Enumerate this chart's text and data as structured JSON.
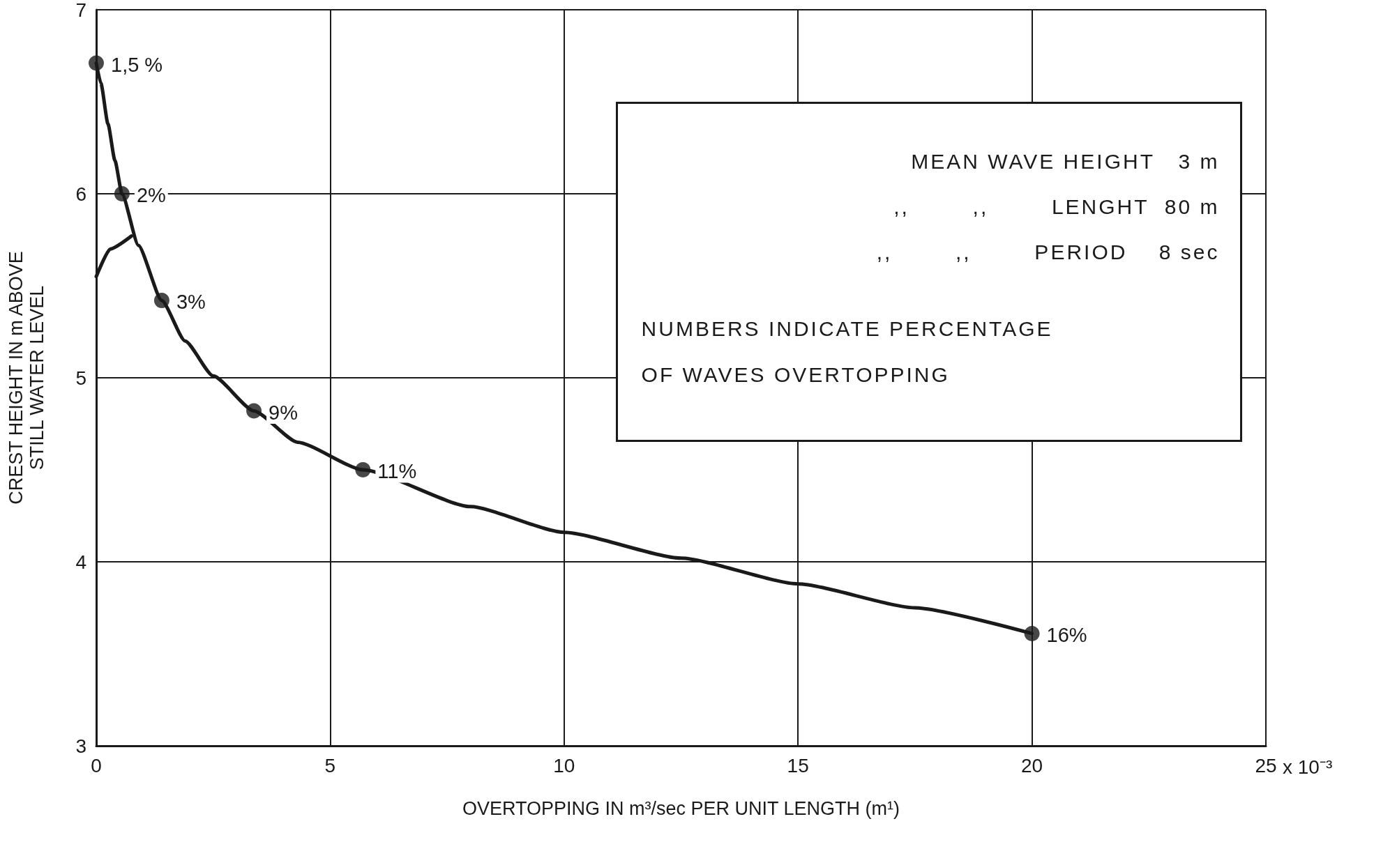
{
  "chart_data": {
    "type": "line",
    "xlabel": "OVERTOPPING IN m³/sec PER UNIT LENGTH (m¹)",
    "ylabel": "CREST HEIGHT IN m ABOVE\nSTILL WATER LEVEL",
    "xlim": [
      0,
      25
    ],
    "xticks": [
      0,
      5,
      10,
      15,
      20,
      25
    ],
    "ylim": [
      3,
      7
    ],
    "yticks": [
      3,
      4,
      5,
      6,
      7
    ],
    "grid": true,
    "series": [
      {
        "color": "#1a1a1a",
        "marker": "none",
        "x": [
          0,
          0.1,
          0.25,
          0.4,
          0.55,
          0.9,
          1.4,
          1.9,
          2.5,
          3.37,
          4.3,
          5.7,
          8,
          10,
          12.5,
          15,
          17.5,
          20
        ],
        "values": [
          6.71,
          6.6,
          6.38,
          6.18,
          6.0,
          5.72,
          5.42,
          5.2,
          5.01,
          4.82,
          4.65,
          4.5,
          4.3,
          4.16,
          4.02,
          3.88,
          3.75,
          3.61
        ]
      },
      {
        "type": "scatter",
        "color": "#1a1a1a",
        "marker": "circle",
        "x": [
          0,
          0.55,
          1.4,
          3.37,
          5.7,
          20
        ],
        "values": [
          6.71,
          6.0,
          5.42,
          4.82,
          4.5,
          3.61
        ]
      },
      {
        "type": "line",
        "color": "#1a1a1a",
        "marker": "none",
        "x": [
          0,
          0.3,
          0.75
        ],
        "values": [
          5.55,
          5.7,
          5.77
        ]
      }
    ],
    "annotations": [
      {
        "text": "1,5 %",
        "x": 0,
        "y": 6.71
      },
      {
        "text": "2%",
        "x": 0.55,
        "y": 6.0
      },
      {
        "text": "3%",
        "x": 1.4,
        "y": 5.42
      },
      {
        "text": "9%",
        "x": 3.37,
        "y": 4.82
      },
      {
        "text": "11%",
        "x": 5.7,
        "y": 4.5
      },
      {
        "text": "16%",
        "x": 20,
        "y": 3.61
      },
      "x 10⁻³",
      "MEAN WAVE HEIGHT   3 m",
      ",,        ,,        LENGHT  80 m",
      ",,        ,,        PERIOD    8 sec",
      "NUMBERS INDICATE PERCENTAGE\nOF WAVES OVERTOPPING"
    ]
  }
}
